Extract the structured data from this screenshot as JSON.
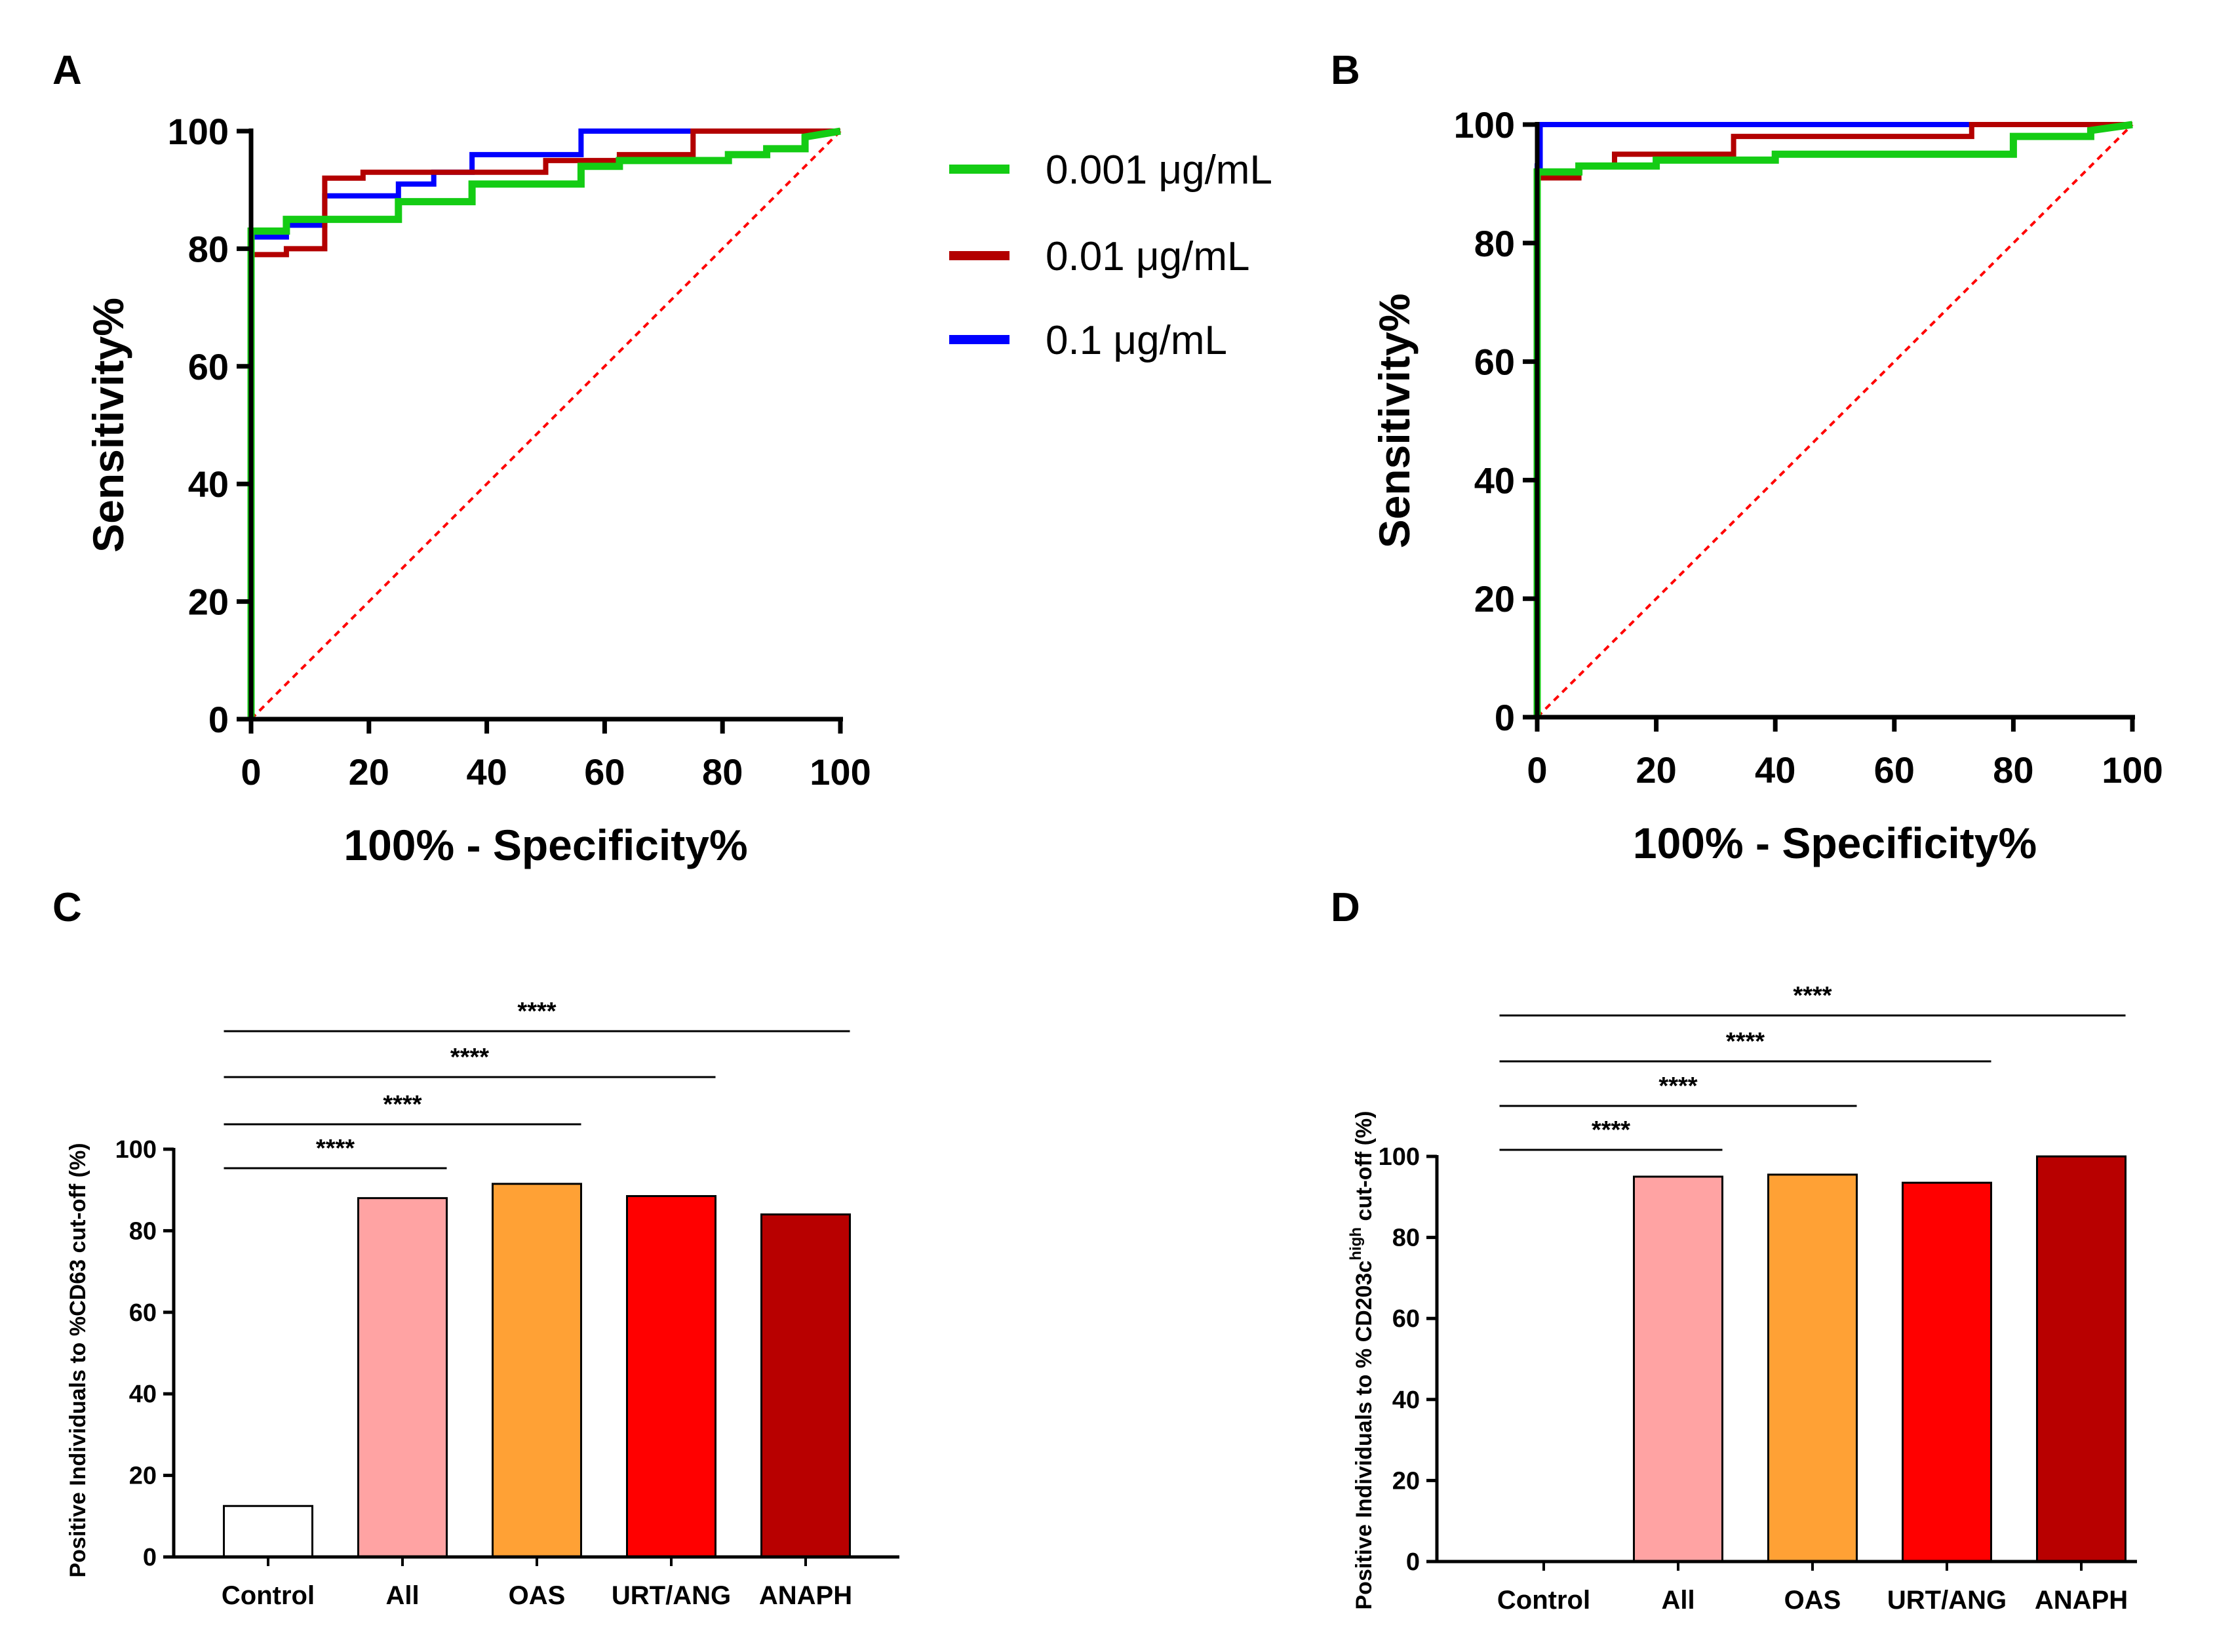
{
  "colors": {
    "green": "#14CC14",
    "red": "#B30000",
    "blue": "#0000FF",
    "reference": "#FF0000",
    "axis": "#000000",
    "control_bar": "#FFFFFF",
    "all_bar": "#FFA3A3",
    "oas_bar": "#FFA135",
    "urt_bar": "#FF0000",
    "anaph_bar": "#B80000"
  },
  "legend": {
    "green": "0.001 μg/mL",
    "red": "0.01 μg/mL",
    "blue": "0.1 μg/mL"
  },
  "chart_data": [
    {
      "panel": "A",
      "type": "line",
      "title": "",
      "xlabel": "100% - Specificity%",
      "ylabel": "Sensitivity%",
      "xlim": [
        0,
        100
      ],
      "ylim": [
        0,
        100
      ],
      "xticks": [
        "0",
        "20",
        "40",
        "60",
        "80",
        "100"
      ],
      "yticks": [
        "0",
        "20",
        "40",
        "60",
        "80",
        "100"
      ],
      "series": [
        {
          "name": "0.1 μg/mL",
          "color_key": "blue",
          "x": [
            0,
            0,
            6,
            6,
            12.5,
            12.5,
            25,
            25,
            31,
            31,
            37.5,
            37.5,
            56,
            56,
            75,
            75,
            100
          ],
          "y": [
            0,
            82,
            82,
            84,
            84,
            89,
            89,
            91,
            91,
            93,
            93,
            96,
            96,
            100,
            100,
            100,
            100
          ]
        },
        {
          "name": "0.01 μg/mL",
          "color_key": "red",
          "x": [
            0,
            0,
            6,
            6,
            12.5,
            12.5,
            19,
            19,
            37.5,
            37.5,
            50,
            50,
            62.5,
            62.5,
            75,
            75,
            100
          ],
          "y": [
            0,
            79,
            79,
            80,
            80,
            92,
            92,
            93,
            93,
            93,
            93,
            95,
            95,
            96,
            96,
            100,
            100
          ]
        },
        {
          "name": "0.001 μg/mL",
          "color_key": "green",
          "x": [
            0,
            0,
            6,
            6,
            25,
            25,
            37.5,
            37.5,
            56,
            56,
            62.5,
            62.5,
            81,
            81,
            87.5,
            87.5,
            94,
            94,
            100
          ],
          "y": [
            0,
            83,
            83,
            85,
            85,
            88,
            88,
            91,
            91,
            94,
            94,
            95,
            95,
            96,
            96,
            97,
            97,
            99,
            100
          ]
        },
        {
          "name": "reference",
          "color_key": "reference",
          "dashed": true,
          "x": [
            0,
            100
          ],
          "y": [
            0,
            100
          ]
        }
      ]
    },
    {
      "panel": "B",
      "type": "line",
      "title": "",
      "xlabel": "100% - Specificity%",
      "ylabel": "Sensitivity%",
      "xlim": [
        0,
        100
      ],
      "ylim": [
        0,
        100
      ],
      "xticks": [
        "0",
        "20",
        "40",
        "60",
        "80",
        "100"
      ],
      "yticks": [
        "0",
        "20",
        "40",
        "60",
        "80",
        "100"
      ],
      "series": [
        {
          "name": "0.1 μg/mL",
          "color_key": "blue",
          "x": [
            0,
            0,
            0.5,
            0.5,
            100
          ],
          "y": [
            0,
            93,
            93,
            100,
            100
          ]
        },
        {
          "name": "0.01 μg/mL",
          "color_key": "red",
          "x": [
            0,
            0,
            7,
            7,
            13,
            13,
            33,
            33,
            73,
            73,
            100
          ],
          "y": [
            0,
            91,
            91,
            93,
            93,
            95,
            95,
            98,
            98,
            100,
            100
          ]
        },
        {
          "name": "0.001 μg/mL",
          "color_key": "green",
          "x": [
            0,
            0,
            7,
            7,
            20,
            20,
            40,
            40,
            47,
            47,
            80,
            80,
            93,
            93,
            100
          ],
          "y": [
            0,
            92,
            92,
            93,
            93,
            94,
            94,
            95,
            95,
            95,
            95,
            98,
            98,
            99,
            100
          ]
        },
        {
          "name": "reference",
          "color_key": "reference",
          "dashed": true,
          "x": [
            0,
            100
          ],
          "y": [
            0,
            100
          ]
        }
      ]
    },
    {
      "panel": "C",
      "type": "bar",
      "title": "",
      "xlabel": "",
      "ylabel": "Positive Individuals to %CD63 cut-off (%)",
      "categories": [
        "Control",
        "All",
        "OAS",
        "URT/ANG",
        "ANAPH"
      ],
      "values": [
        12.5,
        88,
        91.5,
        88.5,
        84
      ],
      "color_keys": [
        "control_bar",
        "all_bar",
        "oas_bar",
        "urt_bar",
        "anaph_bar"
      ],
      "ylim": [
        0,
        100
      ],
      "yticks": [
        "0",
        "20",
        "40",
        "60",
        "80",
        "100"
      ],
      "significance": [
        {
          "from": "Control",
          "to": "All",
          "label": "****"
        },
        {
          "from": "Control",
          "to": "OAS",
          "label": "****"
        },
        {
          "from": "Control",
          "to": "URT/ANG",
          "label": "****"
        },
        {
          "from": "Control",
          "to": "ANAPH",
          "label": "****"
        }
      ]
    },
    {
      "panel": "D",
      "type": "bar",
      "title": "",
      "xlabel": "",
      "ylabel": "Positive Individuals to % CD203c",
      "ylabel_sup": "high",
      "ylabel_suffix": " cut-off (%)",
      "categories": [
        "Control",
        "All",
        "OAS",
        "URT/ANG",
        "ANAPH"
      ],
      "values": [
        0,
        95,
        95.5,
        93.5,
        100
      ],
      "color_keys": [
        "control_bar",
        "all_bar",
        "oas_bar",
        "urt_bar",
        "anaph_bar"
      ],
      "ylim": [
        0,
        100
      ],
      "yticks": [
        "0",
        "20",
        "40",
        "60",
        "80",
        "100"
      ],
      "significance": [
        {
          "from": "Control",
          "to": "All",
          "label": "****"
        },
        {
          "from": "Control",
          "to": "OAS",
          "label": "****"
        },
        {
          "from": "Control",
          "to": "URT/ANG",
          "label": "****"
        },
        {
          "from": "Control",
          "to": "ANAPH",
          "label": "****"
        }
      ]
    }
  ]
}
